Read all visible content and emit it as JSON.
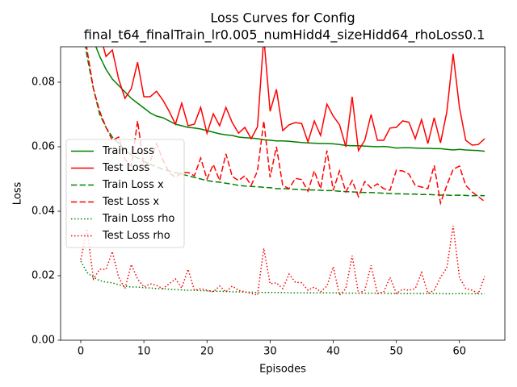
{
  "chart_data": {
    "type": "line",
    "title": [
      "Loss Curves for Config",
      "final_t64_finalTrain_lr0.005_numHidd4_sizeHidd64_rhoLoss0.1"
    ],
    "xlabel": "Episodes",
    "ylabel": "Loss",
    "x": [
      0,
      1,
      2,
      3,
      4,
      5,
      6,
      7,
      8,
      9,
      10,
      11,
      12,
      13,
      14,
      15,
      16,
      17,
      18,
      19,
      20,
      21,
      22,
      23,
      24,
      25,
      26,
      27,
      28,
      29,
      30,
      31,
      32,
      33,
      34,
      35,
      36,
      37,
      38,
      39,
      40,
      41,
      42,
      43,
      44,
      45,
      46,
      47,
      48,
      49,
      50,
      51,
      52,
      53,
      54,
      55,
      56,
      57,
      58,
      59,
      60,
      61,
      62,
      63,
      64
    ],
    "xlim": [
      -3.2,
      67.2
    ],
    "xticks": [
      0,
      10,
      20,
      30,
      40,
      50,
      60
    ],
    "ylim": [
      0,
      0.091
    ],
    "yticks": [
      {
        "value": 0,
        "label": "0.00"
      },
      {
        "value": 0.02,
        "label": "0.02"
      },
      {
        "value": 0.04,
        "label": "0.04"
      },
      {
        "value": 0.06,
        "label": "0.06"
      },
      {
        "value": 0.08,
        "label": "0.08"
      }
    ],
    "legend": "center left",
    "grid": false,
    "series": [
      {
        "name": "Train Loss",
        "color": "#008000",
        "dash": "solid",
        "values": [
          0.115,
          0.1,
          0.093,
          0.088,
          0.084,
          0.081,
          0.079,
          0.077,
          0.075,
          0.0735,
          0.072,
          0.0705,
          0.0695,
          0.069,
          0.068,
          0.067,
          0.0665,
          0.066,
          0.0658,
          0.0655,
          0.065,
          0.0645,
          0.064,
          0.0637,
          0.0635,
          0.063,
          0.0628,
          0.0627,
          0.0625,
          0.0622,
          0.062,
          0.0618,
          0.0618,
          0.0617,
          0.0615,
          0.0613,
          0.0612,
          0.0611,
          0.061,
          0.061,
          0.0609,
          0.0607,
          0.0604,
          0.0603,
          0.0603,
          0.0602,
          0.0601,
          0.06,
          0.0601,
          0.0599,
          0.0596,
          0.0597,
          0.0597,
          0.0596,
          0.0595,
          0.0595,
          0.0594,
          0.0594,
          0.0592,
          0.059,
          0.0592,
          0.059,
          0.0589,
          0.0588,
          0.0586
        ]
      },
      {
        "name": "Test Loss",
        "color": "#ff0000",
        "dash": "solid",
        "values": [
          0.12,
          0.1,
          0.097,
          0.095,
          0.088,
          0.09,
          0.081,
          0.075,
          0.078,
          0.0862,
          0.0755,
          0.0755,
          0.0772,
          0.0745,
          0.071,
          0.067,
          0.0735,
          0.0665,
          0.067,
          0.0722,
          0.0642,
          0.0702,
          0.0665,
          0.0722,
          0.0675,
          0.0642,
          0.066,
          0.0625,
          0.0662,
          0.094,
          0.071,
          0.0778,
          0.065,
          0.0668,
          0.0675,
          0.0672,
          0.0615,
          0.068,
          0.0635,
          0.0732,
          0.0695,
          0.0668,
          0.06,
          0.0755,
          0.0588,
          0.062,
          0.07,
          0.062,
          0.062,
          0.0658,
          0.066,
          0.068,
          0.0676,
          0.0625,
          0.0684,
          0.061,
          0.069,
          0.0612,
          0.0708,
          0.0888,
          0.0722,
          0.062,
          0.0605,
          0.0607,
          0.0625
        ]
      },
      {
        "name": "Train Loss x",
        "color": "#008000",
        "dash": "dashed",
        "values": [
          0.1,
          0.088,
          0.078,
          0.07,
          0.066,
          0.063,
          0.061,
          0.059,
          0.0575,
          0.0565,
          0.0555,
          0.0545,
          0.0538,
          0.053,
          0.0525,
          0.052,
          0.0515,
          0.051,
          0.0505,
          0.05,
          0.0495,
          0.0492,
          0.049,
          0.0487,
          0.0484,
          0.048,
          0.0478,
          0.0477,
          0.0476,
          0.0474,
          0.0473,
          0.047,
          0.047,
          0.0469,
          0.0468,
          0.0467,
          0.0466,
          0.0466,
          0.0465,
          0.0464,
          0.0464,
          0.0462,
          0.0461,
          0.046,
          0.0459,
          0.0458,
          0.0458,
          0.0457,
          0.0456,
          0.0455,
          0.0454,
          0.0454,
          0.0453,
          0.0453,
          0.0452,
          0.0452,
          0.0451,
          0.045,
          0.045,
          0.0449,
          0.045,
          0.0449,
          0.0448,
          0.0449,
          0.0448
        ]
      },
      {
        "name": "Test Loss x",
        "color": "#ff0000",
        "dash": "dashed",
        "values": [
          0.105,
          0.09,
          0.078,
          0.071,
          0.066,
          0.062,
          0.063,
          0.056,
          0.054,
          0.068,
          0.054,
          0.0555,
          0.061,
          0.056,
          0.052,
          0.0505,
          0.052,
          0.052,
          0.051,
          0.0565,
          0.05,
          0.0545,
          0.0495,
          0.0578,
          0.0508,
          0.0495,
          0.051,
          0.048,
          0.0525,
          0.068,
          0.0505,
          0.06,
          0.048,
          0.047,
          0.0502,
          0.0498,
          0.0462,
          0.0525,
          0.047,
          0.0588,
          0.0465,
          0.0525,
          0.046,
          0.0495,
          0.0445,
          0.0492,
          0.0472,
          0.0485,
          0.047,
          0.0465,
          0.0527,
          0.0525,
          0.0515,
          0.048,
          0.0475,
          0.047,
          0.0542,
          0.0425,
          0.048,
          0.053,
          0.054,
          0.048,
          0.046,
          0.0445,
          0.043
        ]
      },
      {
        "name": "Train Loss rho",
        "color": "#008000",
        "dash": "dotted",
        "values": [
          0.0245,
          0.021,
          0.0195,
          0.0185,
          0.018,
          0.0178,
          0.0172,
          0.0168,
          0.0165,
          0.0165,
          0.0163,
          0.0162,
          0.016,
          0.016,
          0.0158,
          0.0157,
          0.0156,
          0.0155,
          0.0155,
          0.0154,
          0.0153,
          0.0152,
          0.0152,
          0.0151,
          0.015,
          0.015,
          0.0149,
          0.0149,
          0.0148,
          0.0148,
          0.0148,
          0.0148,
          0.0148,
          0.0147,
          0.0147,
          0.0147,
          0.0147,
          0.0147,
          0.0147,
          0.0147,
          0.0147,
          0.0146,
          0.0146,
          0.0146,
          0.0146,
          0.0146,
          0.0146,
          0.0146,
          0.0146,
          0.0145,
          0.0145,
          0.0145,
          0.0145,
          0.0145,
          0.0145,
          0.0145,
          0.0145,
          0.0145,
          0.0144,
          0.0144,
          0.0145,
          0.0144,
          0.0144,
          0.0144,
          0.0144
        ]
      },
      {
        "name": "Test Loss rho",
        "color": "#ff0000",
        "dash": "dotted",
        "values": [
          0.025,
          0.0345,
          0.019,
          0.022,
          0.022,
          0.0275,
          0.0195,
          0.016,
          0.0235,
          0.019,
          0.0165,
          0.0175,
          0.017,
          0.016,
          0.0175,
          0.019,
          0.0162,
          0.022,
          0.0155,
          0.016,
          0.0155,
          0.015,
          0.0168,
          0.015,
          0.0168,
          0.0155,
          0.015,
          0.0145,
          0.014,
          0.0285,
          0.0175,
          0.0178,
          0.016,
          0.0205,
          0.018,
          0.0178,
          0.0155,
          0.0165,
          0.015,
          0.0168,
          0.0228,
          0.014,
          0.016,
          0.0262,
          0.0145,
          0.0155,
          0.0232,
          0.0145,
          0.015,
          0.0195,
          0.0145,
          0.0158,
          0.0155,
          0.016,
          0.021,
          0.0145,
          0.0155,
          0.0195,
          0.0225,
          0.0355,
          0.0195,
          0.016,
          0.0155,
          0.0145,
          0.0198
        ]
      }
    ]
  }
}
